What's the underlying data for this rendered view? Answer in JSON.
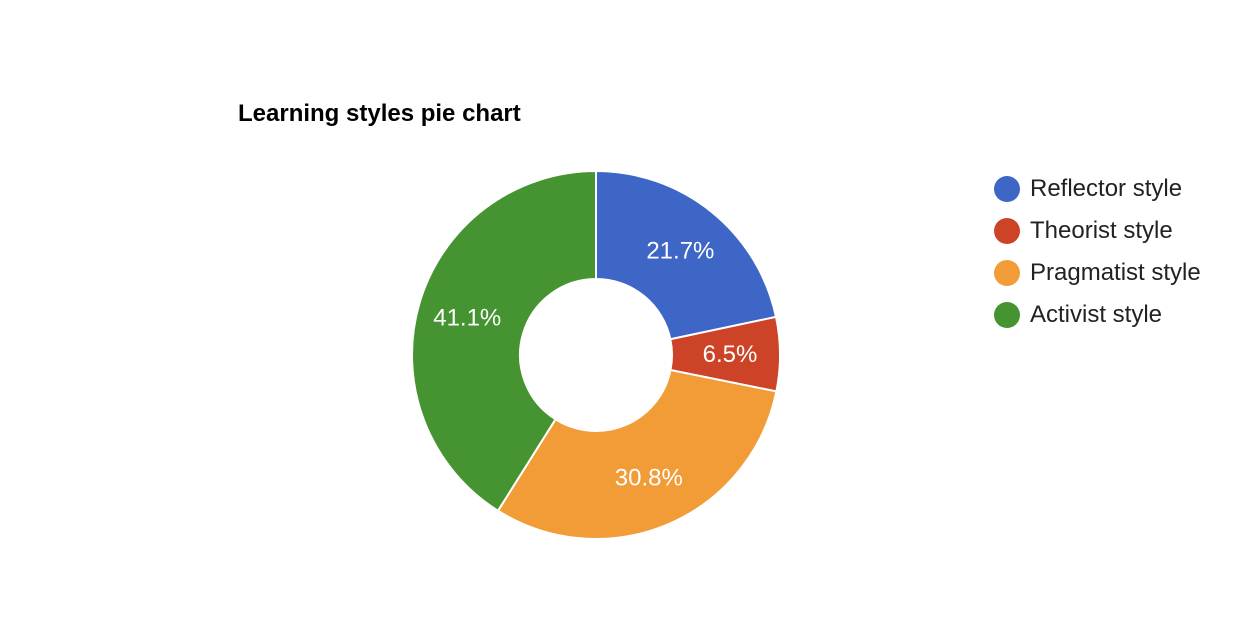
{
  "chart_data": {
    "type": "pie",
    "title": "Learning styles pie chart",
    "donut": true,
    "legend_position": "right",
    "categories": [
      "Reflector style",
      "Theorist style",
      "Pragmatist style",
      "Activist style"
    ],
    "values": [
      21.7,
      6.5,
      30.8,
      41.1
    ],
    "value_labels": [
      "21.7%",
      "6.5%",
      "30.8%",
      "41.1%"
    ],
    "colors": [
      "#3d66c7",
      "#cc4328",
      "#f29c37",
      "#459331"
    ]
  }
}
